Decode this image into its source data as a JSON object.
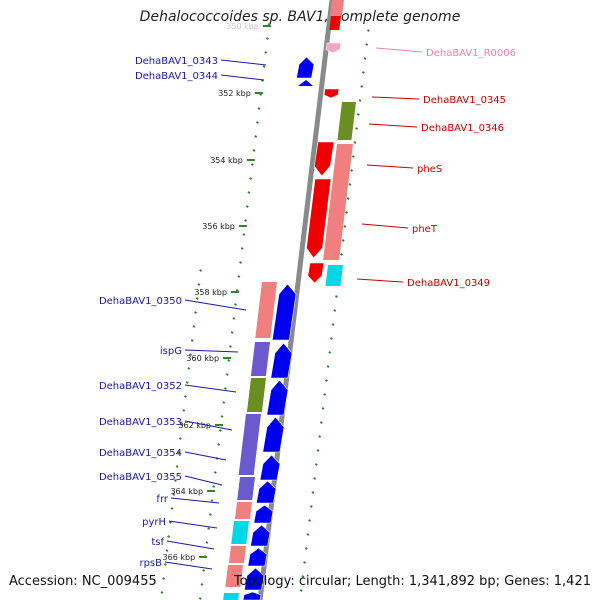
{
  "title": "Dehalococcoides sp. BAV1, complete genome",
  "footer": {
    "accession": "Accession: NC_009455",
    "summary": "Topology: circular; Length: 1,341,892 bp; Genes: 1,421"
  },
  "scale": {
    "unit": "kbp",
    "ticks": [
      {
        "label": "350 kbp",
        "faded": true
      },
      {
        "label": "352 kbp"
      },
      {
        "label": "354 kbp"
      },
      {
        "label": "356 kbp"
      },
      {
        "label": "358 kbp"
      },
      {
        "label": "360 kbp"
      },
      {
        "label": "362 kbp"
      },
      {
        "label": "364 kbp"
      },
      {
        "label": "366 kbp"
      }
    ]
  },
  "colors": {
    "backbone": "#8a8a8a",
    "minus_strand_label": "#1a1aa8",
    "plus_strand_label": "#cc0000",
    "rna_label": "#f080b0",
    "cds_blue": "#0000ee",
    "cds_red": "#ee0000",
    "rna_pink": "#f5a6c8",
    "cog_salmon": "#f08080",
    "cog_olive": "#6b8e23",
    "cog_purple": "#6a5acd",
    "cog_cyan": "#00d8e8",
    "tick_green": "#2a8a2a"
  },
  "genes_minus": [
    {
      "label": "DehaBAV1_0343"
    },
    {
      "label": "DehaBAV1_0344"
    },
    {
      "label": "DehaBAV1_0350"
    },
    {
      "label": "ispG"
    },
    {
      "label": "DehaBAV1_0352"
    },
    {
      "label": "DehaBAV1_0353"
    },
    {
      "label": "DehaBAV1_0354"
    },
    {
      "label": "DehaBAV1_0355"
    },
    {
      "label": "frr"
    },
    {
      "label": "pyrH"
    },
    {
      "label": "tsf"
    },
    {
      "label": "rpsB"
    }
  ],
  "genes_plus": [
    {
      "label": "DehaBAV1_R0006",
      "type": "rna"
    },
    {
      "label": "DehaBAV1_0345"
    },
    {
      "label": "DehaBAV1_0346"
    },
    {
      "label": "pheS"
    },
    {
      "label": "pheT"
    },
    {
      "label": "DehaBAV1_0349"
    }
  ]
}
